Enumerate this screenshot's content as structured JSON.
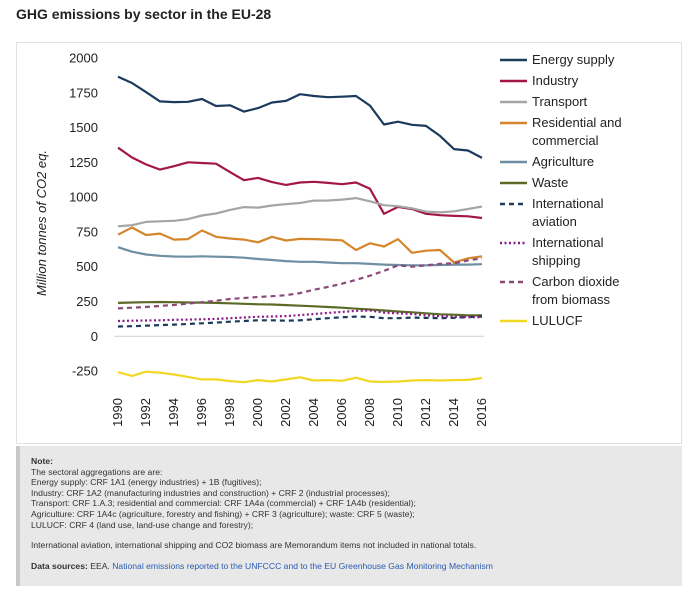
{
  "title": "GHG emissions by sector in the EU-28",
  "colors": {
    "energy": "#1b3a5c",
    "industry": "#a3164a",
    "transport": "#a5a5a5",
    "residential": "#d5862b",
    "agriculture": "#6e8ea4",
    "waste": "#5b6b27",
    "aviation": "#1b3a5c",
    "shipping": "#8a1a8a",
    "biomass": "#8a4a7a",
    "lulucf": "#f0d722"
  },
  "chart_data": {
    "type": "line",
    "title": "GHG emissions by sector in the EU-28",
    "xlabel": "",
    "ylabel": "Million tonnes of CO2 eq.",
    "ylim": [
      -300,
      2000
    ],
    "yticks": [
      2000,
      1750,
      1500,
      1250,
      1000,
      750,
      500,
      250,
      0,
      -250
    ],
    "ytick_labels": [
      "2000",
      "1750",
      "1500",
      "1250",
      "1000",
      "750",
      "500",
      "250",
      "0",
      "-250"
    ],
    "x": [
      1990,
      1991,
      1992,
      1993,
      1994,
      1995,
      1996,
      1997,
      1998,
      1999,
      2000,
      2001,
      2002,
      2003,
      2004,
      2005,
      2006,
      2007,
      2008,
      2009,
      2010,
      2011,
      2012,
      2013,
      2014,
      2015,
      2016
    ],
    "xticks": [
      "1990",
      "1992",
      "1994",
      "1996",
      "1998",
      "2000",
      "2002",
      "2004",
      "2006",
      "2008",
      "2010",
      "2012",
      "2014",
      "2016"
    ],
    "grid": false,
    "legend_position": "right",
    "series": [
      {
        "key": "energy",
        "name": "Energy supply",
        "legend_lines": [
          "Energy supply"
        ],
        "style": "solid",
        "values": [
          1865,
          1820,
          1755,
          1688,
          1683,
          1685,
          1705,
          1655,
          1660,
          1615,
          1640,
          1680,
          1692,
          1740,
          1727,
          1718,
          1722,
          1727,
          1658,
          1522,
          1542,
          1520,
          1512,
          1440,
          1345,
          1335,
          1282
        ]
      },
      {
        "key": "industry",
        "name": "Industry",
        "legend_lines": [
          "Industry"
        ],
        "style": "solid",
        "values": [
          1355,
          1285,
          1235,
          1198,
          1222,
          1250,
          1245,
          1240,
          1180,
          1122,
          1138,
          1108,
          1088,
          1105,
          1110,
          1102,
          1093,
          1105,
          1060,
          880,
          930,
          915,
          880,
          870,
          865,
          862,
          850
        ]
      },
      {
        "key": "transport",
        "name": "Transport",
        "legend_lines": [
          "Transport"
        ],
        "style": "solid",
        "values": [
          790,
          798,
          822,
          826,
          830,
          842,
          868,
          882,
          908,
          928,
          925,
          940,
          950,
          958,
          975,
          976,
          982,
          993,
          970,
          942,
          935,
          920,
          896,
          890,
          898,
          915,
          932
        ]
      },
      {
        "key": "residential",
        "name": "Residential and commercial",
        "legend_lines": [
          "Residential and",
          "commercial"
        ],
        "style": "solid",
        "values": [
          730,
          782,
          728,
          738,
          695,
          698,
          760,
          715,
          703,
          695,
          675,
          715,
          688,
          700,
          698,
          695,
          690,
          620,
          668,
          645,
          698,
          600,
          615,
          620,
          530,
          560,
          575
        ]
      },
      {
        "key": "agriculture",
        "name": "Agriculture",
        "legend_lines": [
          "Agriculture"
        ],
        "style": "solid",
        "values": [
          640,
          608,
          588,
          578,
          573,
          572,
          575,
          572,
          570,
          565,
          555,
          548,
          540,
          535,
          535,
          530,
          525,
          525,
          520,
          515,
          512,
          510,
          510,
          512,
          515,
          515,
          518
        ]
      },
      {
        "key": "waste",
        "name": "Waste",
        "legend_lines": [
          "Waste"
        ],
        "style": "solid",
        "values": [
          240,
          243,
          245,
          246,
          245,
          243,
          242,
          240,
          237,
          233,
          230,
          228,
          224,
          220,
          215,
          210,
          205,
          198,
          192,
          185,
          178,
          172,
          165,
          158,
          155,
          150,
          150
        ]
      },
      {
        "key": "aviation",
        "name": "International aviation",
        "legend_lines": [
          "International",
          "aviation"
        ],
        "style": "dash",
        "values": [
          70,
          72,
          76,
          80,
          84,
          88,
          93,
          98,
          105,
          110,
          115,
          115,
          112,
          115,
          122,
          130,
          136,
          141,
          140,
          130,
          130,
          134,
          132,
          130,
          133,
          138,
          142
        ]
      },
      {
        "key": "shipping",
        "name": "International shipping",
        "legend_lines": [
          "International",
          "shipping"
        ],
        "style": "dot",
        "values": [
          110,
          112,
          113,
          115,
          118,
          120,
          122,
          125,
          130,
          135,
          140,
          142,
          145,
          152,
          160,
          168,
          175,
          182,
          185,
          170,
          165,
          160,
          150,
          145,
          140,
          138,
          138
        ]
      },
      {
        "key": "biomass",
        "name": "Carbon dioxide from biomass",
        "legend_lines": [
          "Carbon dioxide",
          "from biomass"
        ],
        "style": "dash",
        "values": [
          200,
          205,
          210,
          218,
          225,
          235,
          245,
          255,
          268,
          275,
          282,
          288,
          295,
          310,
          335,
          355,
          378,
          405,
          435,
          470,
          510,
          500,
          510,
          520,
          525,
          545,
          560
        ]
      },
      {
        "key": "lulucf",
        "name": "LULUCF",
        "legend_lines": [
          "LULUCF"
        ],
        "style": "solid",
        "values": [
          -258,
          -285,
          -255,
          -262,
          -275,
          -292,
          -310,
          -310,
          -322,
          -330,
          -315,
          -325,
          -310,
          -295,
          -318,
          -315,
          -320,
          -298,
          -325,
          -328,
          -325,
          -318,
          -315,
          -318,
          -315,
          -314,
          -300
        ]
      }
    ]
  },
  "note": {
    "heading": "Note:",
    "intro": "The sectoral aggregations are are:",
    "lines": [
      "Energy supply: CRF 1A1 (energy industries) + 1B (fugitives);",
      "Industry: CRF 1A2 (manufacturing industries and construction) + CRF 2 (industrial processes);",
      "Transport: CRF 1.A.3; residential and commercial: CRF 1A4a (commercial) + CRF 1A4b (residential);",
      "Agriculture: CRF 1A4c (agriculture, forestry and fishing) + CRF 3 (agriculture); waste: CRF 5 (waste);",
      "LULUCF: CRF 4 (land use, land-use change and forestry);"
    ],
    "memo": "International aviation, international shipping and CO2 biomass are Memorandum items not included in national totals.",
    "sources_label": "Data sources:",
    "sources_org": "EEA.",
    "sources_link": "National emissions reported to the UNFCCC and to the EU Greenhouse Gas Monitoring Mechanism"
  }
}
